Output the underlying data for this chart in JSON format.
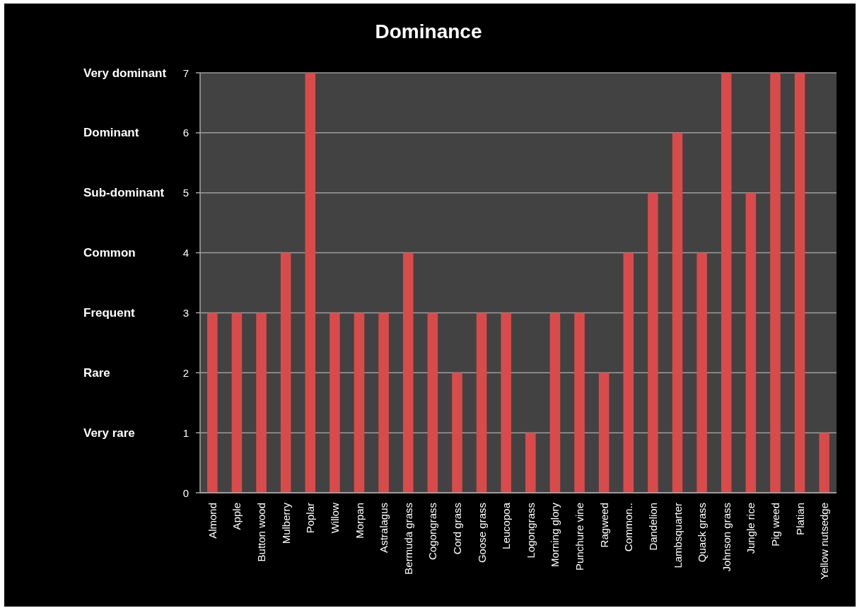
{
  "chart_data": {
    "type": "bar",
    "title": "Dominance",
    "categories": [
      "Almond",
      "Apple",
      "Button wood",
      "Mulberry",
      "Poplar",
      "Willow",
      "Morpan",
      "Astralagus",
      "Bermuda grass",
      "Cogongrass",
      "Cord grass",
      "Goose grass",
      "Leucopoa",
      "Logongrass",
      "Morning glory",
      "Punchure vine",
      "Ragweed",
      "Common..",
      "Dandelion",
      "Lambsquarter",
      "Quack grass",
      "Johnson grass",
      "Jungle rice",
      "Pig weed",
      "Platian",
      "Yellow nutsedge"
    ],
    "values": [
      3,
      3,
      3,
      4,
      7,
      3,
      3,
      3,
      4,
      3,
      2,
      3,
      3,
      1,
      3,
      3,
      2,
      4,
      5,
      6,
      4,
      7,
      5,
      7,
      7,
      1
    ],
    "color": "#d94b4b",
    "ylim": [
      0,
      7
    ],
    "yticks": [
      0,
      1,
      2,
      3,
      4,
      5,
      6,
      7
    ],
    "y2_categories": [
      "Very dominant",
      "Dominant",
      "Sub-dominant",
      "Common",
      "Frequent",
      "Rare",
      "Very rare",
      null
    ],
    "grid": "y"
  }
}
